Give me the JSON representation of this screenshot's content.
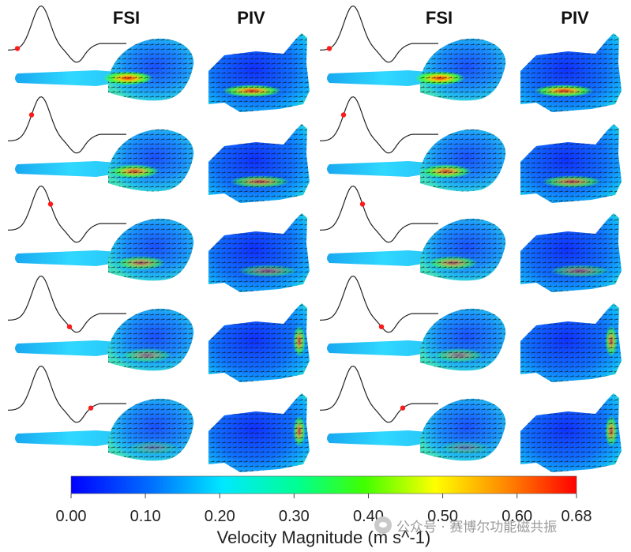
{
  "columns": [
    "FSI",
    "PIV",
    "FSI",
    "PIV"
  ],
  "rows": 5,
  "phase_markers": [
    0.08,
    0.2,
    0.36,
    0.52,
    0.7
  ],
  "colorbar": {
    "title": "Velocity Magnitude (m s^-1)",
    "ticks": [
      "0.00",
      "0.10",
      "0.20",
      "0.30",
      "0.40",
      "0.50",
      "0.60",
      "0.68"
    ],
    "min": 0,
    "max": 0.68,
    "colors": [
      "#0000ff",
      "#0080ff",
      "#00ffff",
      "#00ff80",
      "#00ff00",
      "#ffff00",
      "#ff8000",
      "#ff0000"
    ]
  },
  "watermark": "公众号 · 赛博尔功能磁共振"
}
